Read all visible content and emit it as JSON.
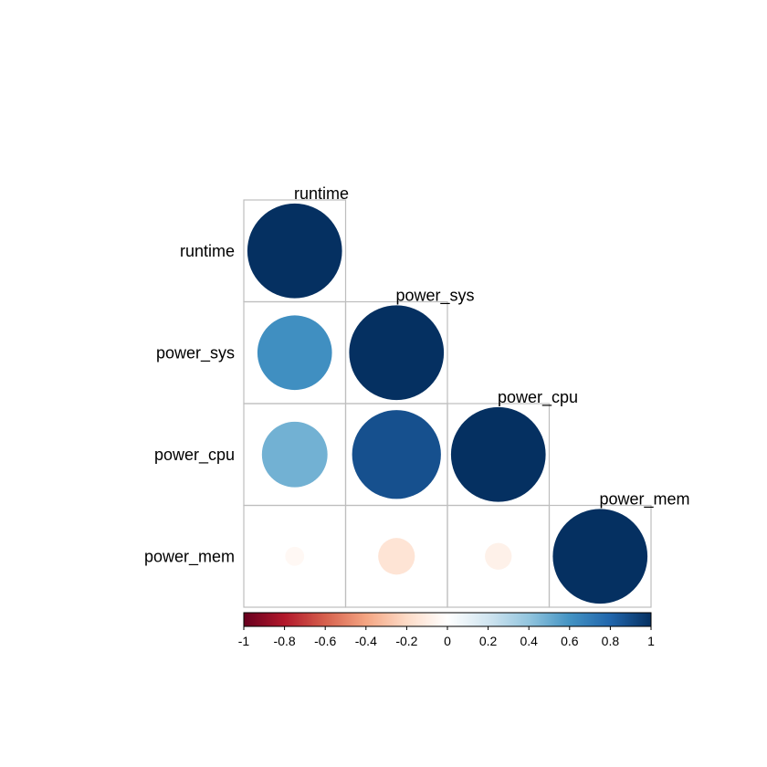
{
  "chart_data": {
    "type": "correlation-matrix",
    "shape": "lower-triangle circles",
    "variables": [
      "runtime",
      "power_sys",
      "power_cpu",
      "power_mem"
    ],
    "matrix": [
      [
        1.0,
        null,
        null,
        null
      ],
      [
        0.62,
        1.0,
        null,
        null
      ],
      [
        0.48,
        0.88,
        1.0,
        null
      ],
      [
        -0.04,
        -0.15,
        -0.08,
        1.0
      ]
    ],
    "colorbar": {
      "range": [
        -1,
        1
      ],
      "ticks": [
        "-1",
        "-0.8",
        "-0.6",
        "-0.4",
        "-0.2",
        "0",
        "0.2",
        "0.4",
        "0.6",
        "0.8",
        "1"
      ],
      "stops": [
        [
          -1.0,
          "#67001F"
        ],
        [
          -0.8,
          "#B2182B"
        ],
        [
          -0.6,
          "#D6604D"
        ],
        [
          -0.4,
          "#F4A582"
        ],
        [
          -0.2,
          "#FDDBC7"
        ],
        [
          0.0,
          "#FFFFFF"
        ],
        [
          0.2,
          "#D1E5F0"
        ],
        [
          0.4,
          "#92C5DE"
        ],
        [
          0.6,
          "#4393C3"
        ],
        [
          0.8,
          "#2166AC"
        ],
        [
          1.0,
          "#053061"
        ]
      ]
    }
  }
}
